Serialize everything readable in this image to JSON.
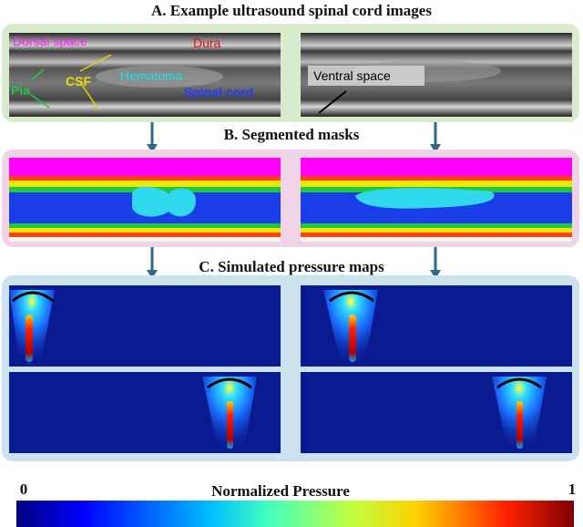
{
  "sections": [
    {
      "title": "A. Example ultrasound spinal cord images"
    },
    {
      "title": "B. Segmented masks"
    },
    {
      "title": "C. Simulated pressure maps"
    }
  ],
  "annotations": {
    "dorsal_space": "Dorsal space",
    "dura": "Dura",
    "hematoma": "Hematoma",
    "spinal_cord": "Spinal cord",
    "pia": "Pia",
    "csf": "CSF",
    "ventral_space": "Ventral space"
  },
  "colorbar": {
    "title": "Normalized Pressure",
    "min": 0,
    "max": 1
  }
}
